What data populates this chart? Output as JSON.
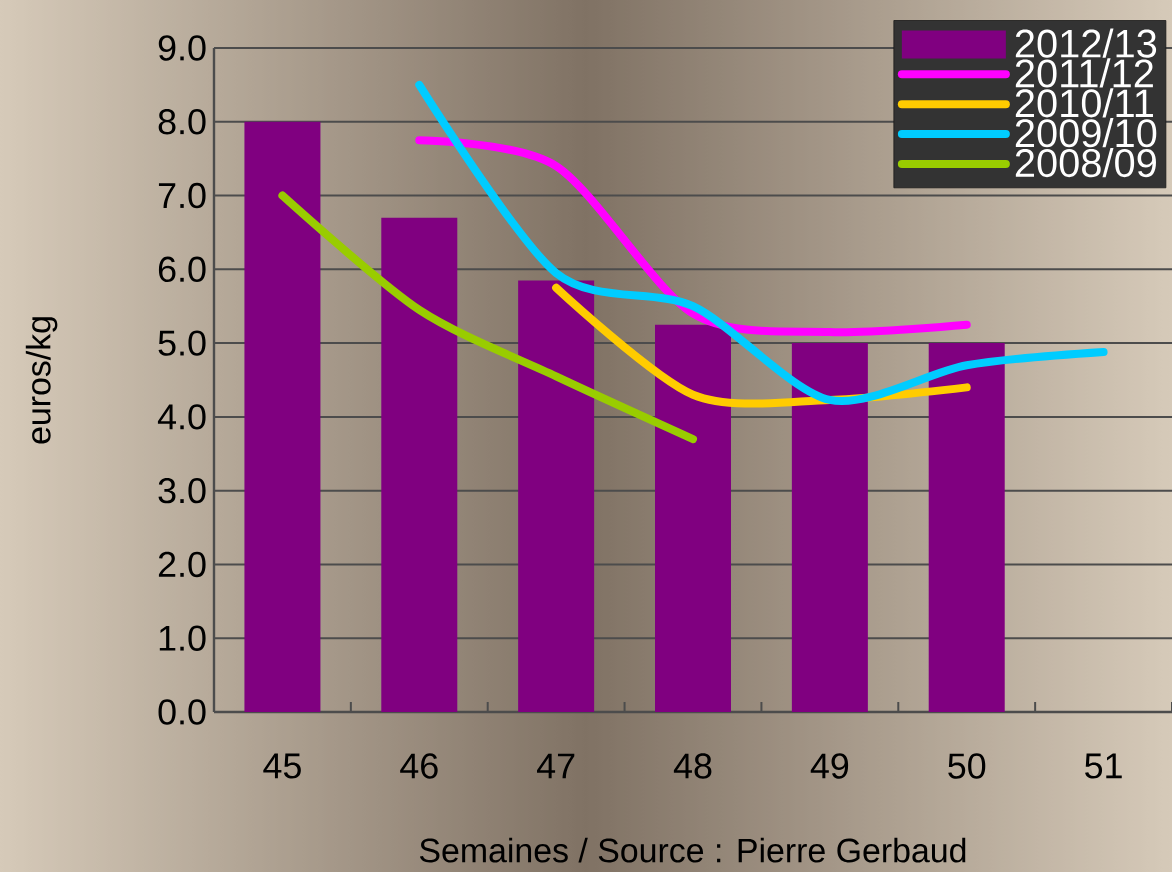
{
  "chart_data": {
    "type": "bar",
    "xlabel": "Semaines / Source : Pierre Gerbaud",
    "ylabel": "euros/kg",
    "categories": [
      "45",
      "46",
      "47",
      "48",
      "49",
      "50",
      "51"
    ],
    "ylim": [
      0,
      9
    ],
    "yticks": [
      {
        "value": 0,
        "label": "0.0"
      },
      {
        "value": 1,
        "label": "1.0"
      },
      {
        "value": 2,
        "label": "2.0"
      },
      {
        "value": 3,
        "label": "3.0"
      },
      {
        "value": 4,
        "label": "4.0"
      },
      {
        "value": 5,
        "label": "5.0"
      },
      {
        "value": 6,
        "label": "6.0"
      },
      {
        "value": 7,
        "label": "7.0"
      },
      {
        "value": 8,
        "label": "8.0"
      },
      {
        "value": 9,
        "label": "9.0"
      }
    ],
    "grid": "y",
    "legend": "top right",
    "series": [
      {
        "name": "2012/13",
        "type": "bar",
        "color": "#800080",
        "values": [
          8.0,
          6.7,
          5.85,
          5.25,
          5.0,
          5.0,
          null
        ]
      },
      {
        "name": "2011/12",
        "type": "line",
        "color": "#ff00ff",
        "values": [
          null,
          7.75,
          7.4,
          5.4,
          5.15,
          5.25,
          null
        ]
      },
      {
        "name": "2010/11",
        "type": "line",
        "color": "#ffcc00",
        "values": [
          null,
          null,
          5.75,
          4.3,
          4.23,
          4.4,
          null
        ]
      },
      {
        "name": "2009/10",
        "type": "line",
        "color": "#00ccff",
        "values": [
          null,
          8.5,
          5.95,
          5.5,
          4.23,
          4.7,
          4.88
        ]
      },
      {
        "name": "2008/09",
        "type": "line",
        "color": "#99cc00",
        "values": [
          7.0,
          5.45,
          4.55,
          3.7,
          null,
          null,
          null
        ]
      }
    ]
  }
}
